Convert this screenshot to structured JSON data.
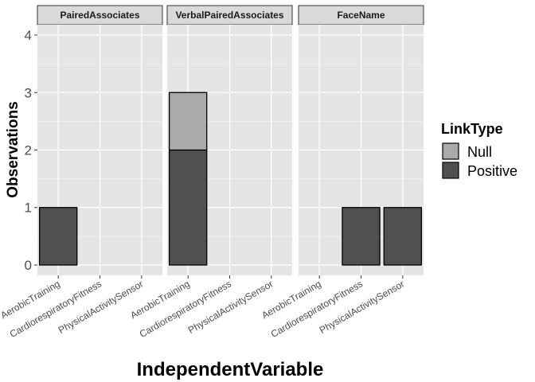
{
  "chart_data": {
    "type": "bar",
    "stacked": true,
    "facets": [
      {
        "title": "PairedAssociates",
        "values": {
          "Null": [
            0,
            0,
            0
          ],
          "Positive": [
            1,
            0,
            0
          ]
        }
      },
      {
        "title": "VerbalPairedAssociates",
        "values": {
          "Null": [
            1,
            0,
            0
          ],
          "Positive": [
            2,
            0,
            0
          ]
        }
      },
      {
        "title": "FaceName",
        "values": {
          "Null": [
            0,
            0,
            0
          ],
          "Positive": [
            0,
            1,
            1
          ]
        }
      }
    ],
    "categories": [
      "AerobicTraining",
      "CardiorespiratoryFitness",
      "PhysicalActivitySensor"
    ],
    "series": [
      {
        "name": "Null",
        "color": "#aaaaaa"
      },
      {
        "name": "Positive",
        "color": "#505050"
      }
    ],
    "xlabel": "IndependentVariable",
    "ylabel": "Observations",
    "ylim": [
      -0.18,
      4.18
    ],
    "yticks": [
      "0",
      "1",
      "2",
      "3",
      "4"
    ],
    "legend": {
      "title": "LinkType",
      "position": "right"
    },
    "grid": true,
    "panel_background": "#e5e5e5",
    "strip_background": "#d9d9d9"
  }
}
